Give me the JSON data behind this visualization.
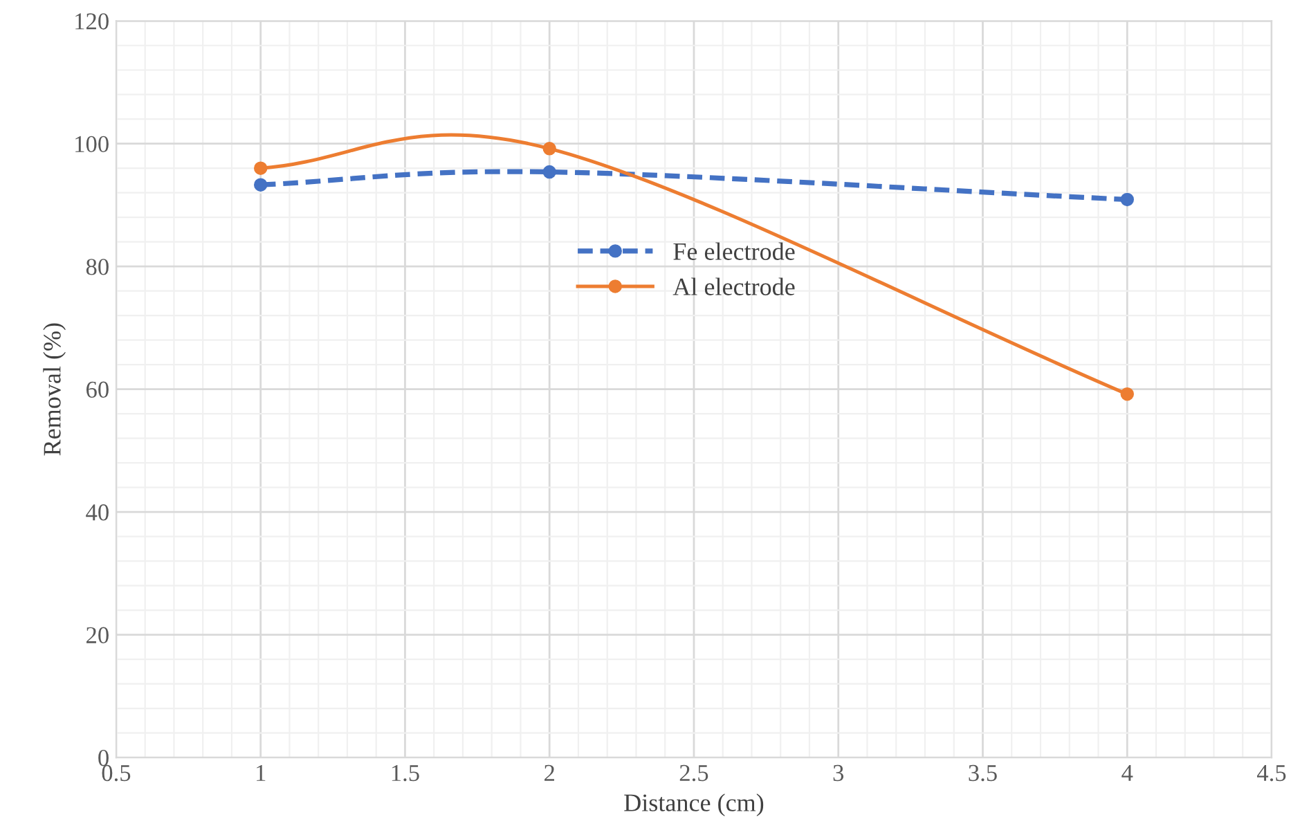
{
  "chart_data": {
    "type": "line",
    "xlabel": "Distance (cm)",
    "ylabel": "Removal (%)",
    "xlim": [
      0.5,
      4.5
    ],
    "xticks": [
      0.5,
      1,
      1.5,
      2,
      2.5,
      3,
      3.5,
      4,
      4.5
    ],
    "ylim": [
      0,
      120
    ],
    "yticks": [
      0,
      20,
      40,
      60,
      80,
      100,
      120
    ],
    "grid": true,
    "legend": "center",
    "marker": "circle",
    "series": [
      {
        "name": "Fe electrode",
        "color": "#4472c4",
        "line_style": "dashed",
        "x": [
          1,
          2,
          4
        ],
        "values": [
          93.3,
          95.4,
          90.9
        ]
      },
      {
        "name": "Al electrode",
        "color": "#ed7d31",
        "line_style": "solid",
        "x": [
          1,
          2,
          4
        ],
        "values": [
          96.0,
          99.2,
          59.2
        ]
      }
    ]
  }
}
